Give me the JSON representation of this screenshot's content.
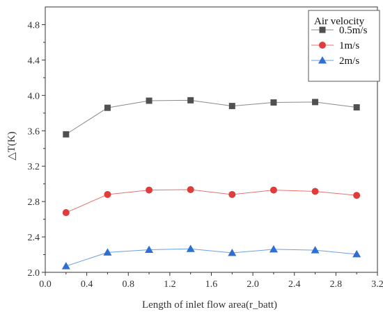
{
  "chart_data": {
    "type": "line",
    "title": "",
    "xlabel": "Length of inlet flow area(r_batt)",
    "ylabel": "△T(K)",
    "xlim": [
      0.0,
      3.2
    ],
    "ylim": [
      2.0,
      5.0
    ],
    "xticks": [
      0.0,
      0.4,
      0.8,
      1.2,
      1.6,
      2.0,
      2.4,
      2.8,
      3.2
    ],
    "yticks": [
      2.0,
      2.4,
      2.8,
      3.2,
      3.6,
      4.0,
      4.4,
      4.8
    ],
    "xtick_labels": [
      "0.0",
      "0.4",
      "0.8",
      "1.2",
      "1.6",
      "2.0",
      "2.4",
      "2.8",
      "3.2"
    ],
    "ytick_labels": [
      "2.0",
      "2.4",
      "2.8",
      "3.2",
      "3.6",
      "4.0",
      "4.4",
      "4.8"
    ],
    "grid": false,
    "legend": {
      "title": "Air velocity",
      "position": "top-right"
    },
    "x": [
      0.2,
      0.6,
      1.0,
      1.4,
      1.8,
      2.2,
      2.6,
      3.0
    ],
    "series": [
      {
        "name": "0.5m/s",
        "values": [
          3.56,
          3.86,
          3.94,
          3.945,
          3.88,
          3.92,
          3.925,
          3.865
        ],
        "color": "#505050",
        "line_color": "#8a8a8a",
        "marker": "square"
      },
      {
        "name": "1m/s",
        "values": [
          2.675,
          2.88,
          2.93,
          2.935,
          2.88,
          2.93,
          2.915,
          2.87
        ],
        "color": "#e03c3c",
        "line_color": "#e87070",
        "marker": "circle"
      },
      {
        "name": "2m/s",
        "values": [
          2.07,
          2.225,
          2.255,
          2.265,
          2.22,
          2.26,
          2.25,
          2.205
        ],
        "color": "#2e6fd0",
        "line_color": "#6aa0e0",
        "marker": "triangle"
      }
    ]
  }
}
